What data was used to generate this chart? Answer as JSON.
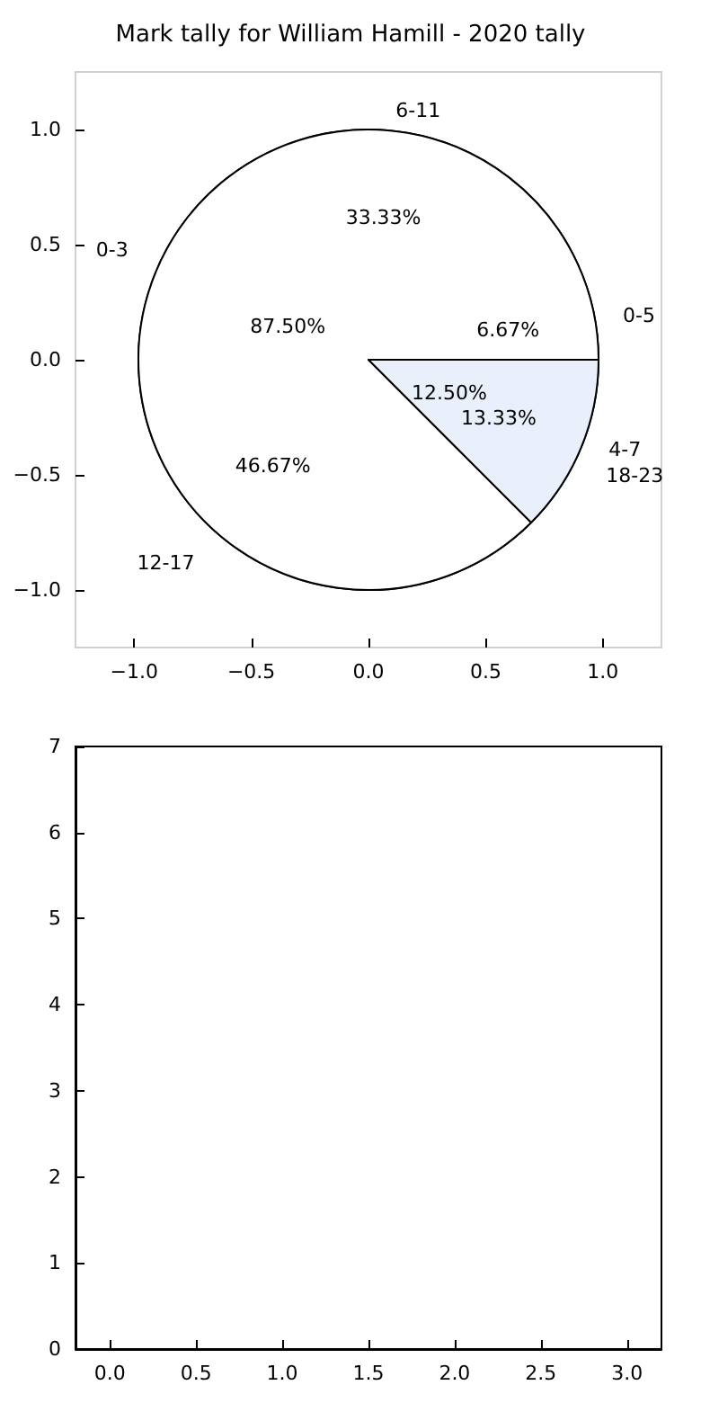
{
  "chart_data": [
    {
      "type": "pie",
      "categories": [
        "0-5",
        "6-11",
        "12-17",
        "18-23"
      ],
      "values": [
        6.67,
        33.33,
        46.67,
        13.33
      ],
      "colors": [
        "#ffffff",
        "#ffffff",
        "#ffffff",
        "#ffffff"
      ],
      "value_labels": [
        "6.67%",
        "33.33%",
        "46.67%",
        "13.33%"
      ]
    },
    {
      "type": "pie",
      "categories": [
        "0-3",
        "4-7"
      ],
      "values": [
        87.5,
        12.5
      ],
      "colors": [
        "#ffffff",
        "#eaf0fb"
      ],
      "value_labels": [
        "87.50%",
        "12.50%"
      ]
    },
    {
      "type": "scatter",
      "title": "Mark tally for William Hamill - 2020 tally",
      "xlim": [
        -1.25,
        1.25
      ],
      "ylim": [
        -1.25,
        1.25
      ],
      "xticks": [
        {
          "value": -1,
          "label": "−1.0"
        },
        {
          "value": -0.5,
          "label": "−0.5"
        },
        {
          "value": 0,
          "label": "0.0"
        },
        {
          "value": 0.5,
          "label": "0.5"
        },
        {
          "value": 1,
          "label": "1.0"
        }
      ],
      "yticks": [
        {
          "value": -1,
          "label": "−1.0"
        },
        {
          "value": -0.5,
          "label": "−0.5"
        },
        {
          "value": 0,
          "label": "0.0"
        },
        {
          "value": 0.5,
          "label": "0.5"
        },
        {
          "value": 1,
          "label": "1.0"
        }
      ]
    },
    {
      "type": "scatter",
      "xlim": [
        -0.2,
        3.2
      ],
      "ylim": [
        0,
        7
      ],
      "xticks": [
        {
          "value": 0,
          "label": "0.0"
        },
        {
          "value": 0.5,
          "label": "0.5"
        },
        {
          "value": 1,
          "label": "1.0"
        },
        {
          "value": 1.5,
          "label": "1.5"
        },
        {
          "value": 2,
          "label": "2.0"
        },
        {
          "value": 2.5,
          "label": "2.5"
        },
        {
          "value": 3,
          "label": "3.0"
        }
      ],
      "yticks": [
        0,
        1,
        2,
        3,
        4,
        5,
        6,
        7
      ]
    }
  ]
}
